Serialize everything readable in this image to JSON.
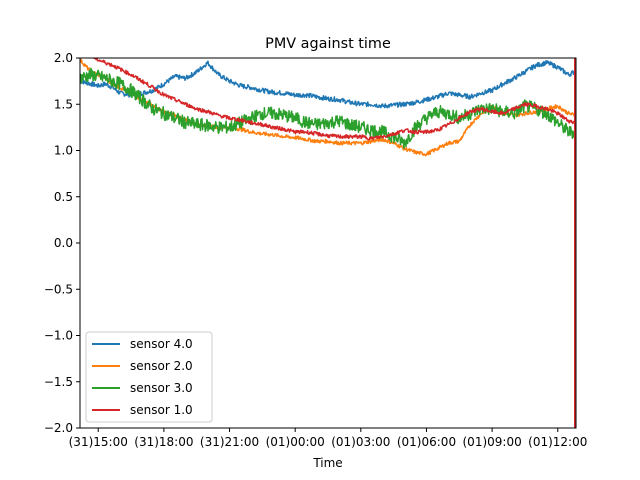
{
  "chart_data": {
    "type": "line",
    "title": "PMV against  time",
    "xlabel": "Time",
    "ylabel": "",
    "ylim": [
      -2.0,
      2.0
    ],
    "xlim": [
      "2020-12-31 14:10",
      "2021-01-01 12:50"
    ],
    "x_ticks": [
      "(31)15:00",
      "(31)18:00",
      "(31)21:00",
      "(01)00:00",
      "(01)03:00",
      "(01)06:00",
      "(01)09:00",
      "(01)12:00"
    ],
    "y_ticks": [
      "2.0",
      "1.5",
      "1.0",
      "0.5",
      "0.0",
      "−0.5",
      "−1.0",
      "−1.5",
      "−2.0"
    ],
    "y_tick_values": [
      2.0,
      1.5,
      1.0,
      0.5,
      0.0,
      -0.5,
      -1.0,
      -1.5,
      -2.0
    ],
    "grid": false,
    "legend_position": "lower-left",
    "x": [
      "14:10",
      "14:40",
      "15:00",
      "15:20",
      "15:40",
      "16:00",
      "16:30",
      "17:00",
      "17:30",
      "18:00",
      "18:30",
      "19:00",
      "19:30",
      "20:00",
      "20:30",
      "21:00",
      "21:30",
      "22:00",
      "22:30",
      "23:00",
      "23:30",
      "00:00",
      "00:30",
      "01:00",
      "01:30",
      "02:00",
      "02:30",
      "03:00",
      "03:30",
      "04:00",
      "04:30",
      "05:00",
      "05:30",
      "06:00",
      "06:30",
      "07:00",
      "07:30",
      "08:00",
      "08:30",
      "09:00",
      "09:30",
      "10:00",
      "10:30",
      "11:00",
      "11:30",
      "12:00",
      "12:30",
      "12:50"
    ],
    "series": [
      {
        "name": "sensor 4.0",
        "color": "#1f77b4",
        "values": [
          1.75,
          1.72,
          1.7,
          1.72,
          1.68,
          1.62,
          1.6,
          1.62,
          1.65,
          1.72,
          1.8,
          1.78,
          1.85,
          1.95,
          1.82,
          1.75,
          1.7,
          1.68,
          1.65,
          1.63,
          1.62,
          1.6,
          1.6,
          1.58,
          1.56,
          1.55,
          1.52,
          1.5,
          1.5,
          1.48,
          1.49,
          1.5,
          1.52,
          1.55,
          1.58,
          1.62,
          1.6,
          1.58,
          1.62,
          1.65,
          1.72,
          1.78,
          1.85,
          1.92,
          1.95,
          1.9,
          1.82,
          1.86
        ]
      },
      {
        "name": "sensor 2.0",
        "color": "#ff7f0e",
        "values": [
          1.98,
          1.85,
          1.82,
          1.78,
          1.72,
          1.68,
          1.62,
          1.55,
          1.48,
          1.42,
          1.38,
          1.33,
          1.28,
          1.27,
          1.25,
          1.25,
          1.23,
          1.2,
          1.18,
          1.17,
          1.15,
          1.14,
          1.12,
          1.1,
          1.1,
          1.08,
          1.08,
          1.08,
          1.1,
          1.12,
          1.08,
          1.02,
          0.98,
          0.96,
          1.02,
          1.08,
          1.1,
          1.28,
          1.4,
          1.48,
          1.4,
          1.38,
          1.4,
          1.42,
          1.45,
          1.48,
          1.4,
          1.38
        ]
      },
      {
        "name": "sensor 3.0",
        "color": "#2ca02c",
        "values": [
          1.78,
          1.82,
          1.8,
          1.78,
          1.75,
          1.72,
          1.65,
          1.55,
          1.45,
          1.4,
          1.35,
          1.3,
          1.28,
          1.27,
          1.25,
          1.25,
          1.3,
          1.35,
          1.4,
          1.4,
          1.38,
          1.35,
          1.3,
          1.28,
          1.3,
          1.32,
          1.28,
          1.25,
          1.22,
          1.2,
          1.15,
          1.08,
          1.25,
          1.35,
          1.42,
          1.4,
          1.35,
          1.4,
          1.45,
          1.45,
          1.42,
          1.4,
          1.48,
          1.45,
          1.4,
          1.3,
          1.2,
          1.2
        ]
      },
      {
        "name": "sensor 1.0",
        "color": "#d62728",
        "values": [
          2.05,
          2.02,
          1.98,
          1.95,
          1.92,
          1.88,
          1.82,
          1.75,
          1.68,
          1.6,
          1.55,
          1.5,
          1.45,
          1.42,
          1.38,
          1.35,
          1.33,
          1.3,
          1.28,
          1.25,
          1.23,
          1.2,
          1.2,
          1.18,
          1.16,
          1.15,
          1.15,
          1.15,
          1.13,
          1.15,
          1.18,
          1.22,
          1.2,
          1.2,
          1.22,
          1.28,
          1.35,
          1.42,
          1.45,
          1.42,
          1.4,
          1.45,
          1.5,
          1.48,
          1.45,
          1.4,
          1.32,
          1.3
        ]
      }
    ]
  }
}
